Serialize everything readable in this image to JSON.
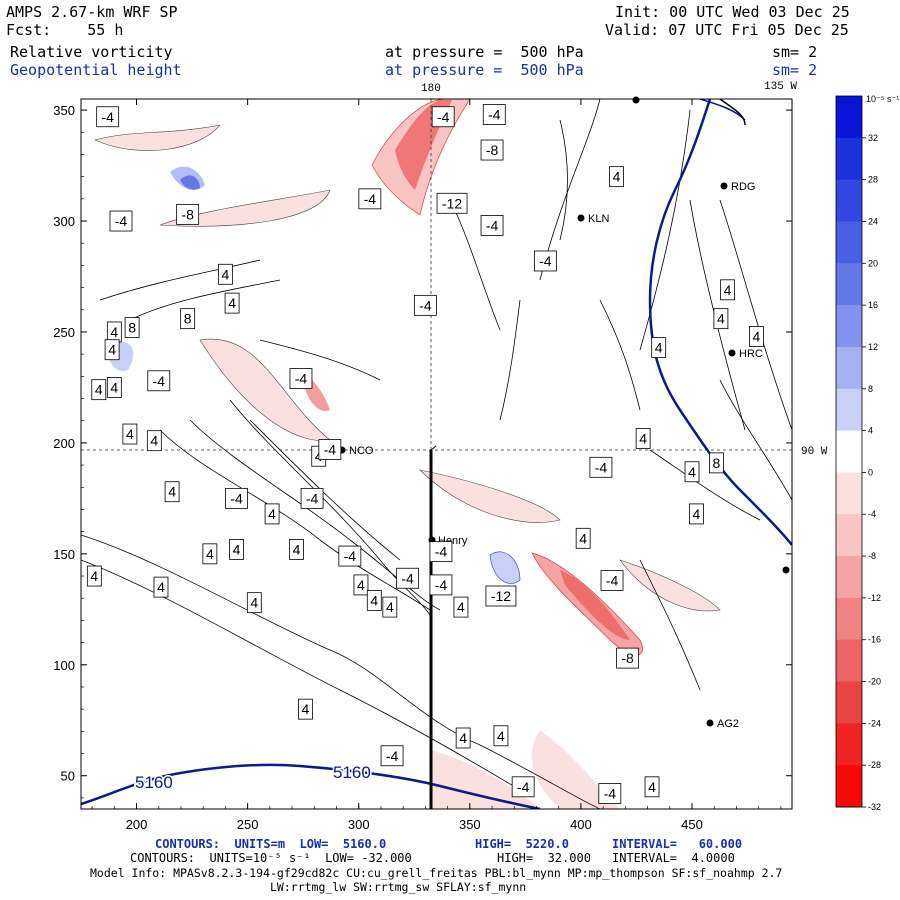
{
  "header": {
    "model": "AMPS 2.67-km WRF SP",
    "fcst": "Fcst:    55 h",
    "init": "Init: 00 UTC Wed 03 Dec 25",
    "valid": "Valid: 07 UTC Fri 05 Dec 25",
    "field1_name": "Relative vorticity",
    "field1_level": "at pressure =  500 hPa",
    "field1_smooth": "sm= 2",
    "field2_name": "Geopotential height",
    "field2_level": "at pressure =  500 hPa",
    "field2_smooth": "sm= 2"
  },
  "map_labels": {
    "lon180": "180",
    "lon135": "135 W",
    "lon90": "90 W",
    "stations": [
      "KLN",
      "RDG",
      "HRC",
      "NCO",
      "Henry",
      "AG2"
    ]
  },
  "colorbar": {
    "title": "10⁻⁵ s⁻¹",
    "ticks": [
      "32",
      "28",
      "24",
      "20",
      "16",
      "12",
      "8",
      "4",
      "0",
      "-4",
      "-8",
      "-12",
      "-16",
      "-20",
      "-24",
      "-28",
      "-32"
    ],
    "colors": [
      "#0a14d8",
      "#1c30dc",
      "#3248e0",
      "#4a60e4",
      "#6478e8",
      "#8292ee",
      "#a4b0f2",
      "#c8d0f8",
      "#ffffff",
      "#fbe0e0",
      "#f8c4c4",
      "#f4a4a4",
      "#f08484",
      "#ec6464",
      "#e84444",
      "#f02424",
      "#f80808"
    ]
  },
  "footer": {
    "line1_a": "CONTOURS:  UNITS=m  LOW=  5160.0",
    "line1_b": "HIGH=  5220.0",
    "line1_c": "INTERVAL=   60.000",
    "line2_a": "CONTOURS:  UNITS=10⁻⁵ s⁻¹  LOW= -32.000",
    "line2_b": "HIGH=  32.000",
    "line2_c": "INTERVAL=  4.0000",
    "line3": "Model Info: MPASv8.2.3-194-gf29cd82c CU:cu_grell_freitas PBL:bl_mynn MP:mp_thompson SF:sf_noahmp 2.7",
    "line4": "LW:rrtmg_lw SW:rrtmg_sw SFLAY:sf_mynn"
  },
  "chart_data": {
    "type": "contour",
    "x_ticks": [
      200,
      250,
      300,
      350,
      400,
      450
    ],
    "y_ticks": [
      50,
      100,
      150,
      200,
      250,
      300,
      350
    ],
    "xlim": [
      175,
      495
    ],
    "ylim": [
      35,
      355
    ],
    "height_contour_labels": [
      "5160",
      "5160"
    ],
    "vorticity_labels": [
      {
        "text": "-4",
        "x": 187,
        "y": 347
      },
      {
        "text": "-4",
        "x": 338,
        "y": 347
      },
      {
        "text": "-4",
        "x": 361,
        "y": 348
      },
      {
        "text": "-8",
        "x": 360,
        "y": 332
      },
      {
        "text": "4",
        "x": 416,
        "y": 320
      },
      {
        "text": "-4",
        "x": 305,
        "y": 310
      },
      {
        "text": "-8",
        "x": 223,
        "y": 303
      },
      {
        "text": "-12",
        "x": 342,
        "y": 308
      },
      {
        "text": "-4",
        "x": 193,
        "y": 300
      },
      {
        "text": "-4",
        "x": 360,
        "y": 298
      },
      {
        "text": "-4",
        "x": 384,
        "y": 282
      },
      {
        "text": "4",
        "x": 240,
        "y": 276
      },
      {
        "text": "4",
        "x": 243,
        "y": 263
      },
      {
        "text": "-4",
        "x": 330,
        "y": 262
      },
      {
        "text": "4",
        "x": 190,
        "y": 250
      },
      {
        "text": "8",
        "x": 223,
        "y": 256
      },
      {
        "text": "8",
        "x": 198,
        "y": 252
      },
      {
        "text": "4",
        "x": 479,
        "y": 248
      },
      {
        "text": "4",
        "x": 189,
        "y": 242
      },
      {
        "text": "4",
        "x": 463,
        "y": 256
      },
      {
        "text": "4",
        "x": 435,
        "y": 243
      },
      {
        "text": "4",
        "x": 466,
        "y": 269
      },
      {
        "text": "-4",
        "x": 210,
        "y": 228
      },
      {
        "text": "-4",
        "x": 274,
        "y": 229
      },
      {
        "text": "4",
        "x": 183,
        "y": 224
      },
      {
        "text": "4",
        "x": 190,
        "y": 225
      },
      {
        "text": "4",
        "x": 208,
        "y": 201
      },
      {
        "text": "4",
        "x": 197,
        "y": 204
      },
      {
        "text": "4",
        "x": 282,
        "y": 194
      },
      {
        "text": "-4",
        "x": 287,
        "y": 197
      },
      {
        "text": "4",
        "x": 428,
        "y": 202
      },
      {
        "text": "-4",
        "x": 409,
        "y": 189
      },
      {
        "text": "4",
        "x": 450,
        "y": 187
      },
      {
        "text": "8",
        "x": 461,
        "y": 191
      },
      {
        "text": "4",
        "x": 216,
        "y": 178
      },
      {
        "text": "-4",
        "x": 245,
        "y": 175
      },
      {
        "text": "-4",
        "x": 279,
        "y": 175
      },
      {
        "text": "4",
        "x": 261,
        "y": 168
      },
      {
        "text": "4",
        "x": 452,
        "y": 168
      },
      {
        "text": "4",
        "x": 401,
        "y": 157
      },
      {
        "text": "4",
        "x": 233,
        "y": 150
      },
      {
        "text": "4",
        "x": 245,
        "y": 152
      },
      {
        "text": "-4",
        "x": 296,
        "y": 149
      },
      {
        "text": "4",
        "x": 272,
        "y": 152
      },
      {
        "text": "-4",
        "x": 337,
        "y": 151
      },
      {
        "text": "4",
        "x": 181,
        "y": 140
      },
      {
        "text": "4",
        "x": 211,
        "y": 135
      },
      {
        "text": "4",
        "x": 253,
        "y": 128
      },
      {
        "text": "4",
        "x": 301,
        "y": 136
      },
      {
        "text": "4",
        "x": 307,
        "y": 129
      },
      {
        "text": "-4",
        "x": 322,
        "y": 139
      },
      {
        "text": "-4",
        "x": 337,
        "y": 136
      },
      {
        "text": "-4",
        "x": 414,
        "y": 138
      },
      {
        "text": "-12",
        "x": 364,
        "y": 131
      },
      {
        "text": "4",
        "x": 346,
        "y": 126
      },
      {
        "text": "4",
        "x": 314,
        "y": 126
      },
      {
        "text": "-8",
        "x": 421,
        "y": 103
      },
      {
        "text": "4",
        "x": 276,
        "y": 80
      },
      {
        "text": "4",
        "x": 364,
        "y": 68
      },
      {
        "text": "4",
        "x": 347,
        "y": 67
      },
      {
        "text": "-4",
        "x": 315,
        "y": 59
      },
      {
        "text": "4",
        "x": 432,
        "y": 45
      },
      {
        "text": "-4",
        "x": 374,
        "y": 45
      },
      {
        "text": "-4",
        "x": 413,
        "y": 42
      }
    ]
  }
}
